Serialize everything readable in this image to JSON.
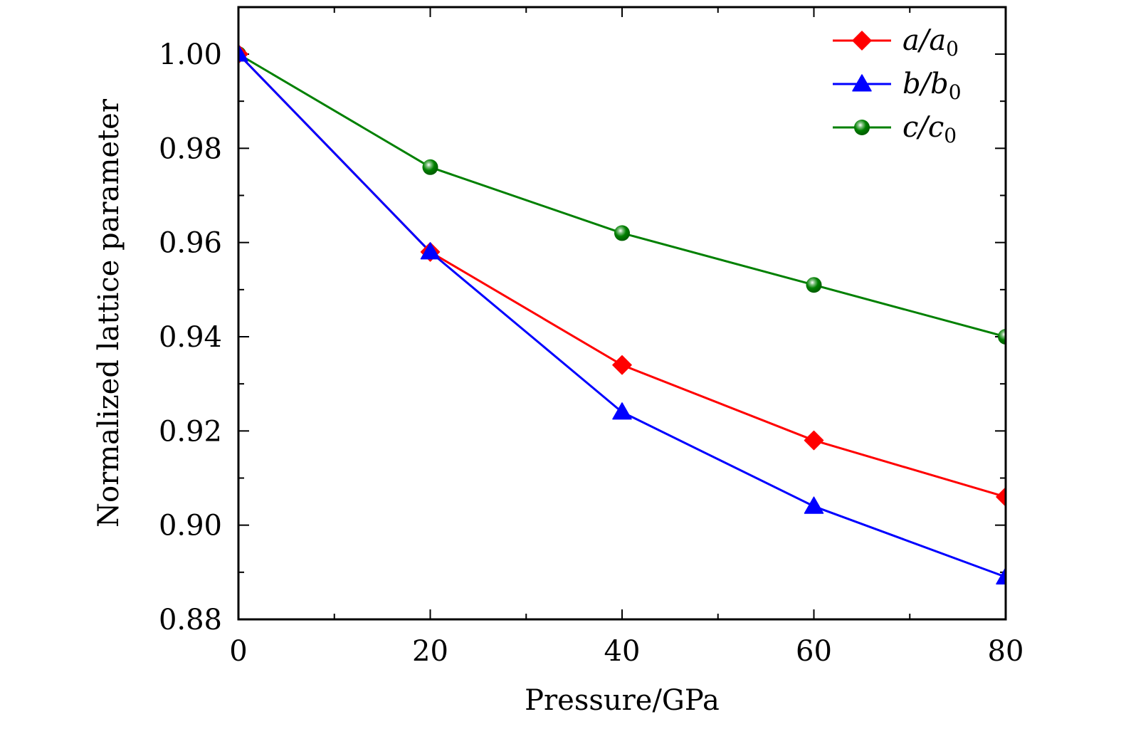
{
  "chart_data": {
    "type": "line",
    "title": "",
    "xlabel": "Pressure/GPa",
    "ylabel": "Normalized lattice parameter",
    "xlim": [
      0,
      80
    ],
    "ylim": [
      0.88,
      1.01
    ],
    "x_ticks": [
      0,
      20,
      40,
      60,
      80
    ],
    "x_tick_labels": [
      "0",
      "20",
      "40",
      "60",
      "80"
    ],
    "x_minor_ticks": [
      10,
      30,
      50,
      70
    ],
    "y_ticks": [
      0.88,
      0.9,
      0.92,
      0.94,
      0.96,
      0.98,
      1.0
    ],
    "y_tick_labels": [
      "0.88",
      "0.90",
      "0.92",
      "0.94",
      "0.96",
      "0.98",
      "1.00"
    ],
    "y_minor_ticks": [
      0.89,
      0.91,
      0.93,
      0.95,
      0.97,
      0.99
    ],
    "grid": false,
    "legend_position": "top-right",
    "x": [
      0,
      20,
      40,
      60,
      80
    ],
    "series": [
      {
        "name": "a/a0",
        "label_main": "a/a",
        "label_sub": "0",
        "color": "#ff0000",
        "marker": "diamond",
        "values": [
          1.0,
          0.958,
          0.934,
          0.918,
          0.906
        ]
      },
      {
        "name": "b/b0",
        "label_main": "b/b",
        "label_sub": "0",
        "color": "#0000ff",
        "marker": "triangle",
        "values": [
          1.0,
          0.958,
          0.924,
          0.904,
          0.889
        ]
      },
      {
        "name": "c/c0",
        "label_main": "c/c",
        "label_sub": "0",
        "color": "#008000",
        "marker": "circle",
        "values": [
          1.0,
          0.976,
          0.962,
          0.951,
          0.94
        ]
      }
    ]
  }
}
